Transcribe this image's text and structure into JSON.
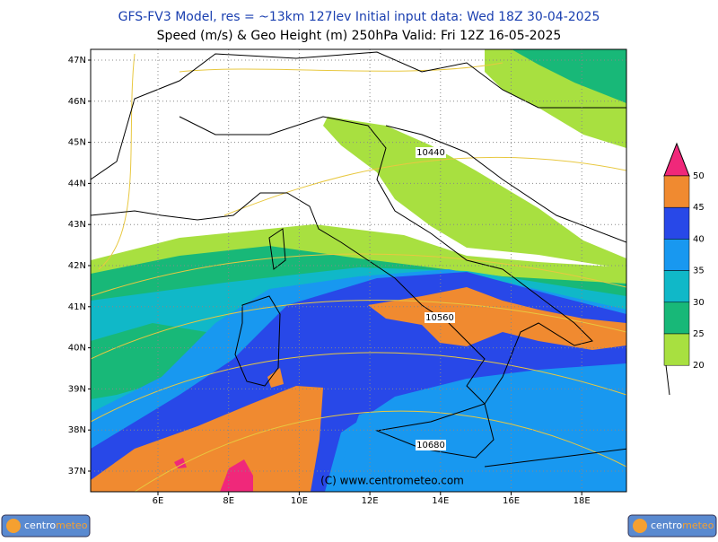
{
  "header": {
    "line1": "GFS-FV3 Model, res = ~13km 127lev    Initial input data: Wed 18Z 30-04-2025",
    "line2": "Speed (m/s) & Geo Height (m) 250hPa  Valid: Fri 12Z 16-05-2025"
  },
  "map": {
    "lat_labels": [
      "47N",
      "46N",
      "45N",
      "44N",
      "43N",
      "42N",
      "41N",
      "40N",
      "39N",
      "38N",
      "37N"
    ],
    "lon_labels": [
      "6E",
      "8E",
      "10E",
      "12E",
      "14E",
      "16E",
      "18E"
    ],
    "contour_labels": [
      "10440",
      "10560",
      "10680"
    ],
    "copyright": "(C) www.centrometeo.com"
  },
  "legend": {
    "levels": [
      50,
      45,
      40,
      35,
      30,
      25,
      20
    ],
    "colors": [
      "#f0287a",
      "#f08a30",
      "#2848e8",
      "#1898f0",
      "#10b8c8",
      "#18b878",
      "#a8e040"
    ]
  },
  "logo": {
    "part1": "centro",
    "part2": "meteo"
  }
}
